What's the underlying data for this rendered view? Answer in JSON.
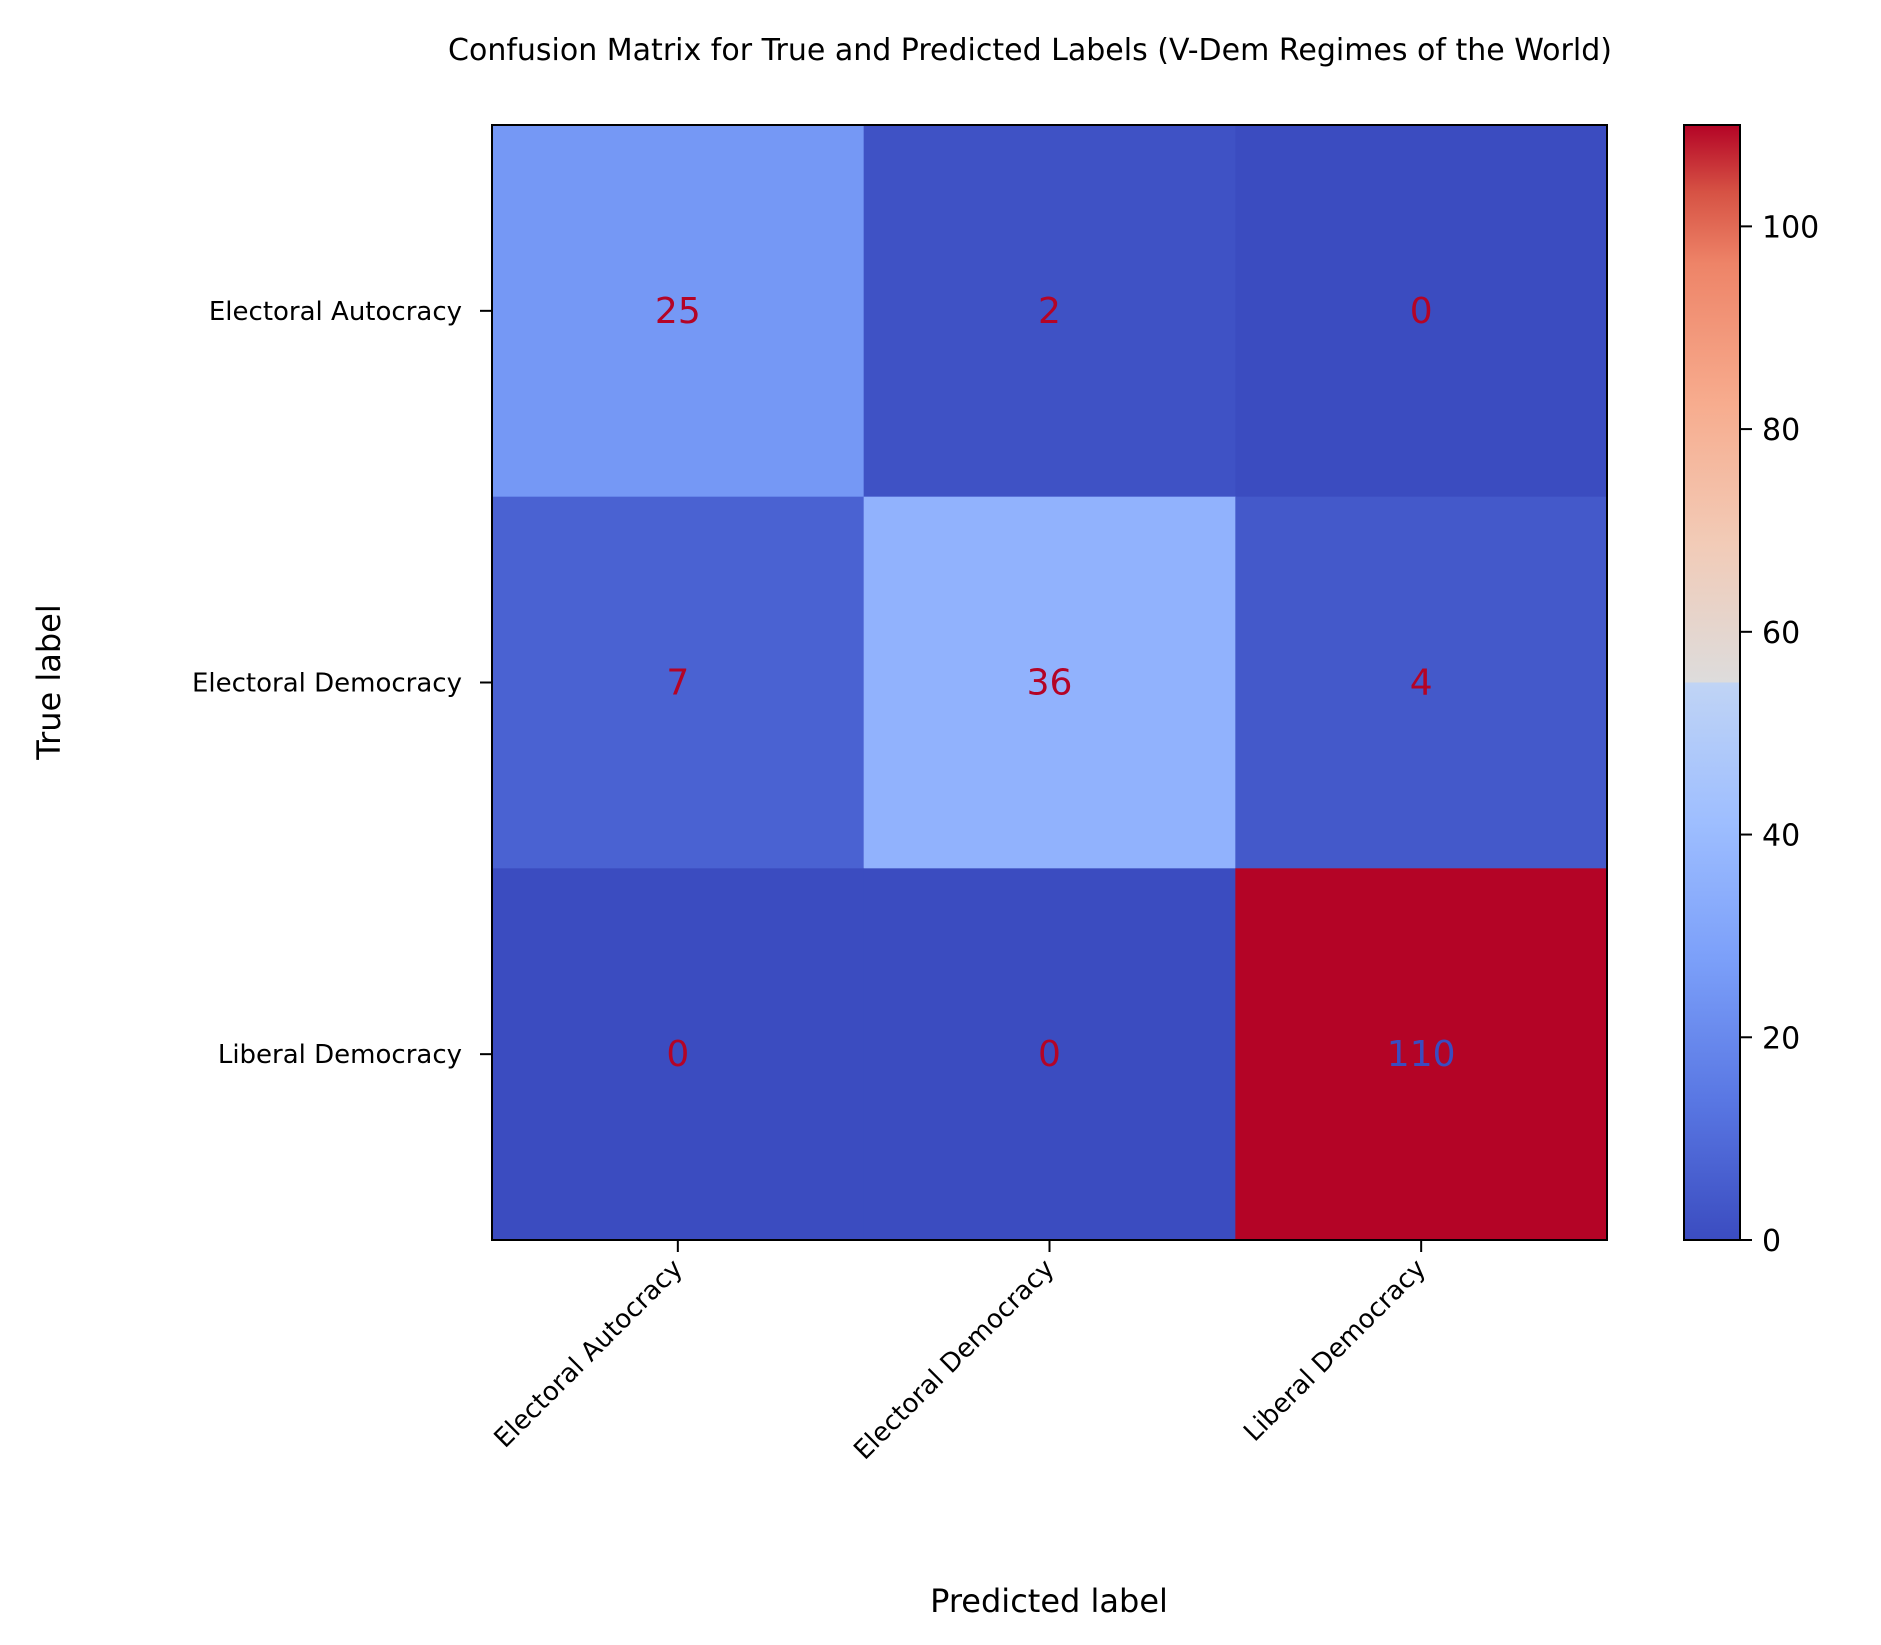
{
  "chart_data": {
    "type": "heatmap",
    "title": "Confusion Matrix for True and Predicted Labels (V-Dem Regimes of the World)",
    "xlabel": "Predicted label",
    "ylabel": "True label",
    "row_labels": [
      "Electoral Autocracy",
      "Electoral Democracy",
      "Liberal Democracy"
    ],
    "col_labels": [
      "Electoral Autocracy",
      "Electoral Democracy",
      "Liberal Democracy"
    ],
    "values": [
      [
        25,
        2,
        0
      ],
      [
        7,
        36,
        4
      ],
      [
        0,
        0,
        110
      ]
    ],
    "colormap": "coolwarm",
    "vmin": 0,
    "vmax": 110,
    "colorbar_ticks": [
      0,
      20,
      40,
      60,
      80,
      100
    ],
    "text_colors": {
      "low": "#b40426",
      "high": "#3b4cc0"
    }
  }
}
